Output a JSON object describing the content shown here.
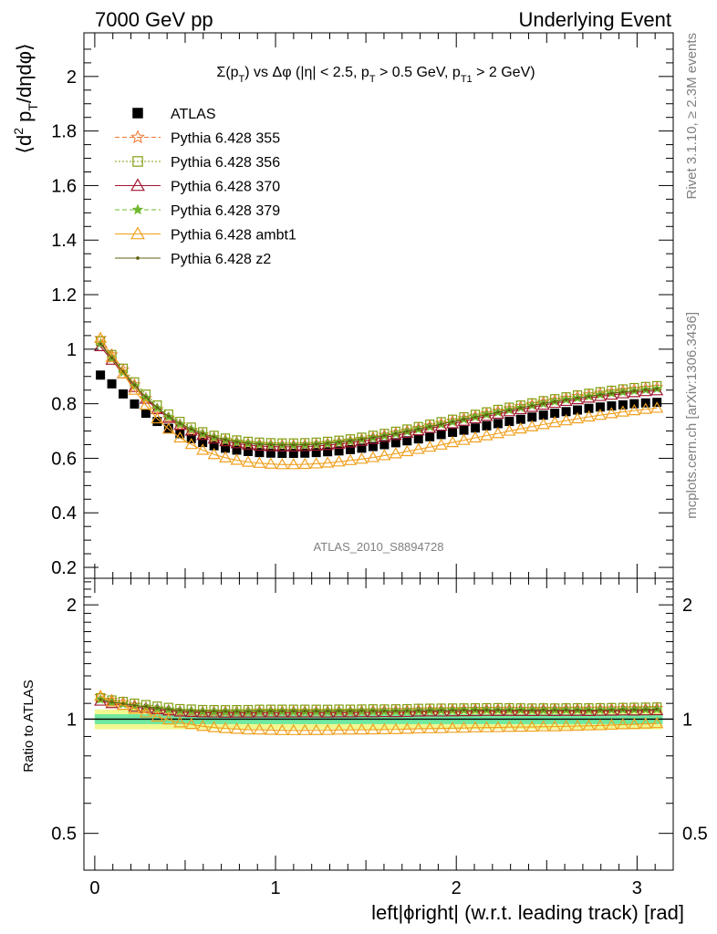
{
  "header": {
    "left": "7000 GeV pp",
    "right": "Underlying Event",
    "title_parts": [
      "Σ(p",
      "T",
      ") vs Δφ (|η| < 2.5, p",
      "T",
      " > 0.5 GeV, p",
      "T1",
      " > 2 GeV)"
    ],
    "ylabel_parts": [
      "⟨d",
      "2",
      " p",
      "T",
      "/dηdφ⟩"
    ],
    "ratio_ylabel": "Ratio to ATLAS",
    "xlabel": "left|ϕright| (w.r.t. leading track) [rad]",
    "analysis_id": "ATLAS_2010_S8894728",
    "side_rivet": "Rivet 3.1.10, ≥ 2.3M events",
    "side_mcplots": "mcplots.cern.ch [arXiv:1306.3436]"
  },
  "colors": {
    "ATLAS": "#000000",
    "p355": "#f07830",
    "p356": "#80a010",
    "p370": "#a01830",
    "p379": "#70b830",
    "ambt1": "#f0a020",
    "z2": "#606010",
    "band_inner": "#70e8a0",
    "band_outer": "#f0f890"
  },
  "chart_data": [
    {
      "type": "line",
      "panel": "main",
      "xlim": [
        -0.06,
        3.2
      ],
      "ylim": [
        0.16,
        2.16
      ],
      "yticks": [
        0.2,
        0.4,
        0.6,
        0.8,
        1,
        1.2,
        1.4,
        1.6,
        1.8,
        2
      ],
      "ytick_labels": [
        "0.2",
        "0.4",
        "0.6",
        "0.8",
        "1",
        "1.2",
        "1.4",
        "1.6",
        "1.8",
        "2"
      ],
      "legend_position": "top-left",
      "series": [
        {
          "name": "ATLAS",
          "key": "ATLAS",
          "marker": "square",
          "values": [
            0.905,
            0.873,
            0.836,
            0.799,
            0.765,
            0.735,
            0.71,
            0.69,
            0.672,
            0.658,
            0.646,
            0.637,
            0.63,
            0.625,
            0.621,
            0.619,
            0.618,
            0.618,
            0.619,
            0.621,
            0.624,
            0.627,
            0.632,
            0.637,
            0.643,
            0.65,
            0.657,
            0.664,
            0.671,
            0.679,
            0.687,
            0.695,
            0.703,
            0.711,
            0.719,
            0.727,
            0.735,
            0.743,
            0.751,
            0.758,
            0.765,
            0.771,
            0.777,
            0.783,
            0.788,
            0.792,
            0.796,
            0.8,
            0.803,
            0.805
          ]
        },
        {
          "name": "Pythia 6.428 355",
          "key": "p355",
          "marker": "star-open",
          "dash": "5,3",
          "values": [
            1.04,
            0.98,
            0.925,
            0.87,
            0.82,
            0.78,
            0.748,
            0.723,
            0.703,
            0.688,
            0.676,
            0.667,
            0.66,
            0.655,
            0.652,
            0.65,
            0.649,
            0.649,
            0.65,
            0.652,
            0.655,
            0.659,
            0.664,
            0.67,
            0.677,
            0.685,
            0.693,
            0.701,
            0.71,
            0.719,
            0.728,
            0.737,
            0.746,
            0.755,
            0.764,
            0.773,
            0.782,
            0.79,
            0.798,
            0.806,
            0.813,
            0.82,
            0.827,
            0.833,
            0.839,
            0.844,
            0.849,
            0.853,
            0.857,
            0.86
          ]
        },
        {
          "name": "Pythia 6.428 356",
          "key": "p356",
          "marker": "square-open",
          "dash": "2,2",
          "values": [
            1.03,
            0.98,
            0.93,
            0.88,
            0.835,
            0.795,
            0.762,
            0.735,
            0.714,
            0.697,
            0.684,
            0.674,
            0.667,
            0.662,
            0.659,
            0.657,
            0.656,
            0.656,
            0.657,
            0.659,
            0.662,
            0.666,
            0.671,
            0.677,
            0.684,
            0.691,
            0.699,
            0.707,
            0.716,
            0.725,
            0.734,
            0.743,
            0.752,
            0.761,
            0.77,
            0.779,
            0.787,
            0.795,
            0.803,
            0.811,
            0.818,
            0.825,
            0.832,
            0.838,
            0.844,
            0.849,
            0.854,
            0.859,
            0.863,
            0.866
          ]
        },
        {
          "name": "Pythia 6.428 370",
          "key": "p370",
          "marker": "triangle-open",
          "values": [
            1.01,
            0.96,
            0.91,
            0.86,
            0.817,
            0.779,
            0.747,
            0.721,
            0.7,
            0.684,
            0.671,
            0.661,
            0.654,
            0.649,
            0.645,
            0.643,
            0.642,
            0.642,
            0.643,
            0.645,
            0.648,
            0.652,
            0.657,
            0.663,
            0.669,
            0.677,
            0.684,
            0.692,
            0.701,
            0.71,
            0.718,
            0.727,
            0.736,
            0.745,
            0.754,
            0.762,
            0.771,
            0.779,
            0.787,
            0.795,
            0.802,
            0.809,
            0.815,
            0.821,
            0.827,
            0.832,
            0.837,
            0.841,
            0.845,
            0.848
          ]
        },
        {
          "name": "Pythia 6.428 379",
          "key": "p379",
          "marker": "star",
          "dash": "5,3",
          "values": [
            1.02,
            0.965,
            0.915,
            0.865,
            0.822,
            0.784,
            0.752,
            0.726,
            0.706,
            0.69,
            0.677,
            0.667,
            0.66,
            0.655,
            0.651,
            0.649,
            0.648,
            0.648,
            0.649,
            0.651,
            0.654,
            0.658,
            0.663,
            0.669,
            0.675,
            0.682,
            0.69,
            0.698,
            0.706,
            0.715,
            0.724,
            0.733,
            0.742,
            0.751,
            0.76,
            0.768,
            0.777,
            0.785,
            0.793,
            0.8,
            0.808,
            0.815,
            0.821,
            0.827,
            0.833,
            0.838,
            0.843,
            0.847,
            0.851,
            0.855
          ]
        },
        {
          "name": "Pythia 6.428 ambt1",
          "key": "ambt1",
          "marker": "triangle-open",
          "values": [
            1.04,
            0.97,
            0.91,
            0.85,
            0.795,
            0.745,
            0.707,
            0.675,
            0.651,
            0.63,
            0.614,
            0.602,
            0.593,
            0.586,
            0.582,
            0.579,
            0.577,
            0.577,
            0.578,
            0.58,
            0.583,
            0.587,
            0.592,
            0.597,
            0.603,
            0.61,
            0.617,
            0.625,
            0.633,
            0.641,
            0.649,
            0.658,
            0.666,
            0.675,
            0.683,
            0.691,
            0.7,
            0.708,
            0.716,
            0.724,
            0.731,
            0.738,
            0.745,
            0.752,
            0.758,
            0.764,
            0.77,
            0.775,
            0.78,
            0.784
          ]
        },
        {
          "name": "Pythia 6.428 z2",
          "key": "z2",
          "marker": "dot",
          "values": [
            1.02,
            0.968,
            0.918,
            0.868,
            0.825,
            0.786,
            0.754,
            0.728,
            0.707,
            0.691,
            0.678,
            0.668,
            0.66,
            0.655,
            0.652,
            0.65,
            0.649,
            0.649,
            0.65,
            0.652,
            0.655,
            0.659,
            0.664,
            0.67,
            0.676,
            0.683,
            0.691,
            0.699,
            0.707,
            0.716,
            0.725,
            0.734,
            0.743,
            0.751,
            0.76,
            0.769,
            0.777,
            0.785,
            0.793,
            0.801,
            0.808,
            0.815,
            0.821,
            0.827,
            0.833,
            0.838,
            0.843,
            0.847,
            0.851,
            0.855
          ]
        }
      ]
    },
    {
      "type": "line",
      "panel": "ratio",
      "ylabel": "Ratio to ATLAS",
      "xlabel": "left|ϕright| (w.r.t. leading track) [rad]",
      "xlim": [
        -0.06,
        3.2
      ],
      "ylim": [
        0.4,
        2.35
      ],
      "log_scale_y": true,
      "yticks": [
        0.5,
        1,
        2
      ],
      "ytick_labels": [
        "0.5",
        "1",
        "2"
      ],
      "xticks": [
        0,
        1,
        2,
        3
      ],
      "xtick_labels": [
        "0",
        "1",
        "2",
        "3"
      ],
      "band_inner": [
        0.97,
        1.03
      ],
      "band_outer": [
        0.94,
        1.06
      ]
    }
  ]
}
